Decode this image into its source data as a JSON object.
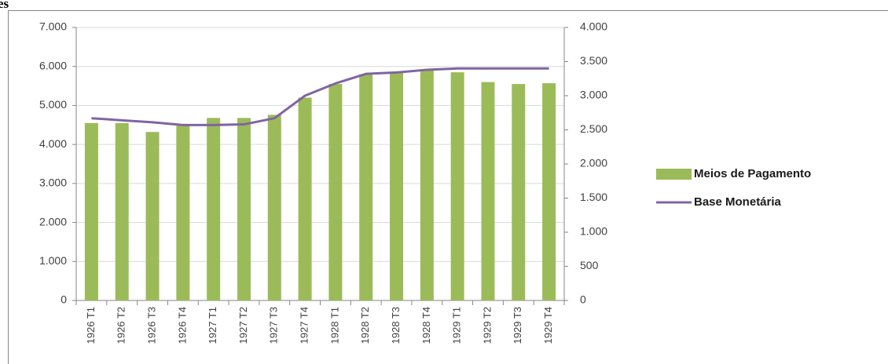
{
  "header_fragment": "es",
  "chart_data": {
    "type": "bar-line",
    "categories": [
      "1926 T1",
      "1926 T2",
      "1926 T3",
      "1926 T4",
      "1927 T1",
      "1927 T2",
      "1927 T3",
      "1927 T4",
      "1928 T1",
      "1928 T2",
      "1928 T3",
      "1928 T4",
      "1929 T1",
      "1929 T2",
      "1929 T3",
      "1929 T4"
    ],
    "series": [
      {
        "name": "Meios de Pagamento",
        "type": "bar",
        "color": "#9bbb59",
        "values": [
          4550,
          4550,
          4320,
          4480,
          4680,
          4680,
          4760,
          5200,
          5550,
          5800,
          5850,
          5920,
          5850,
          5600,
          5550,
          5570
        ]
      },
      {
        "name": "Base Monetária",
        "type": "line",
        "color": "#8064a2",
        "axis": "y2",
        "values": [
          2670,
          2640,
          2610,
          2570,
          2570,
          2580,
          2670,
          3000,
          3180,
          3320,
          3340,
          3380,
          3400,
          3400,
          3400,
          3400
        ]
      }
    ],
    "ylim": [
      0,
      7000
    ],
    "yticks": [
      0,
      {
        "value": 1000,
        "label": "1.000"
      },
      {
        "value": 2000,
        "label": "2.000"
      },
      {
        "value": 3000,
        "label": "3.000"
      },
      {
        "value": 4000,
        "label": "4.000"
      },
      {
        "value": 5000,
        "label": "5.000"
      },
      {
        "value": 6000,
        "label": "6.000"
      },
      {
        "value": 7000,
        "label": "7.000"
      }
    ],
    "y2lim": [
      0,
      4000
    ],
    "y2ticks": [
      0,
      500,
      {
        "value": 1000,
        "label": "1.000"
      },
      {
        "value": 1500,
        "label": "1.500"
      },
      {
        "value": 2000,
        "label": "2.000"
      },
      {
        "value": 2500,
        "label": "2.500"
      },
      {
        "value": 3000,
        "label": "3.000"
      },
      {
        "value": 3500,
        "label": "3.500"
      },
      {
        "value": 4000,
        "label": "4.000"
      }
    ],
    "grid": true,
    "legend": "right"
  }
}
